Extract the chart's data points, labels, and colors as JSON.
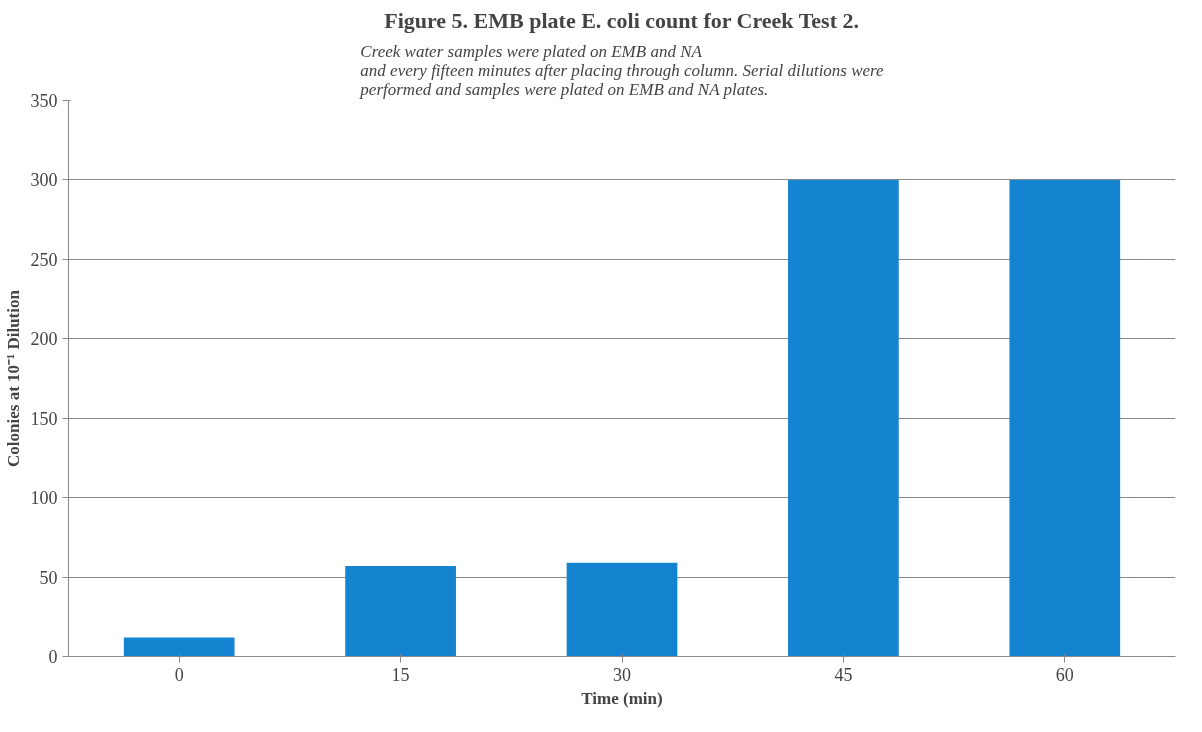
{
  "chart_data": {
    "type": "bar",
    "title": "Figure 5. EMB plate E. coli count for Creek Test 2.",
    "subtitle": "Creek water samples were plated on EMB and NA\nand every fifteen minutes after placing through column. Serial dilutions were\nperformed and samples were plated on EMB and NA plates.",
    "xlabel": "Time (min)",
    "ylabel": "Colonies at 10⁻¹ Dilution",
    "categories": [
      "0",
      "15",
      "30",
      "45",
      "60"
    ],
    "values": [
      12,
      57,
      59,
      300,
      300
    ],
    "color": "#1483d0",
    "ylim": [
      0,
      350
    ],
    "yticks": [
      0,
      50,
      100,
      150,
      200,
      250,
      300,
      350
    ],
    "grid": "y"
  }
}
